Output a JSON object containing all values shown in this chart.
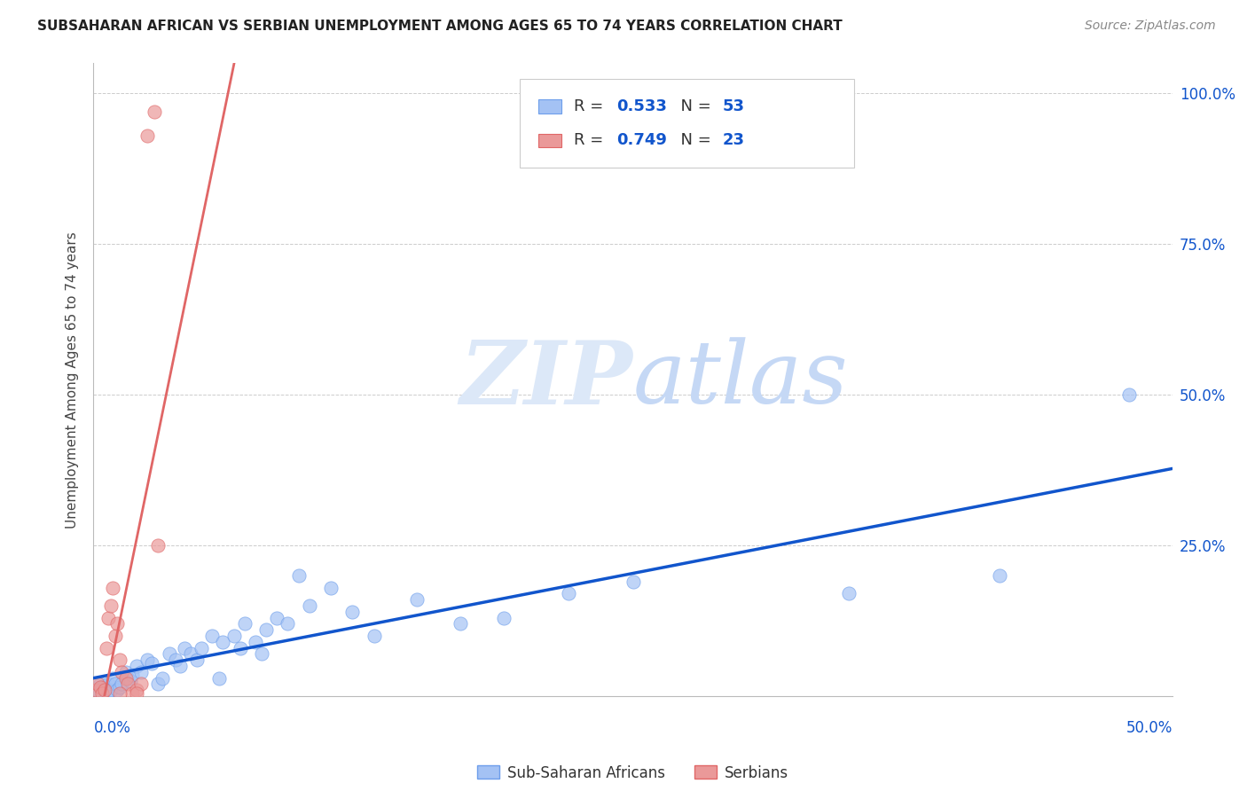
{
  "title": "SUBSAHARAN AFRICAN VS SERBIAN UNEMPLOYMENT AMONG AGES 65 TO 74 YEARS CORRELATION CHART",
  "source": "Source: ZipAtlas.com",
  "ylabel": "Unemployment Among Ages 65 to 74 years",
  "xlim": [
    0.0,
    0.5
  ],
  "ylim": [
    0.0,
    1.05
  ],
  "yticks": [
    0.0,
    0.25,
    0.5,
    0.75,
    1.0
  ],
  "yticklabels_right": [
    "",
    "25.0%",
    "50.0%",
    "75.0%",
    "100.0%"
  ],
  "blue_R": 0.533,
  "blue_N": 53,
  "pink_R": 0.749,
  "pink_N": 23,
  "blue_scatter_color": "#a4c2f4",
  "blue_edge_color": "#6d9eeb",
  "pink_scatter_color": "#ea9999",
  "pink_edge_color": "#e06666",
  "blue_line_color": "#1155cc",
  "pink_line_color": "#e06666",
  "tick_label_color": "#1155cc",
  "watermark_color": "#dce8f8",
  "legend_label_blue": "Sub-Saharan Africans",
  "legend_label_pink": "Serbians",
  "blue_x": [
    0.002,
    0.003,
    0.004,
    0.005,
    0.006,
    0.007,
    0.008,
    0.009,
    0.01,
    0.011,
    0.012,
    0.013,
    0.015,
    0.016,
    0.017,
    0.018,
    0.02,
    0.022,
    0.025,
    0.027,
    0.03,
    0.032,
    0.035,
    0.038,
    0.04,
    0.042,
    0.045,
    0.048,
    0.05,
    0.055,
    0.058,
    0.06,
    0.065,
    0.068,
    0.07,
    0.075,
    0.078,
    0.08,
    0.085,
    0.09,
    0.095,
    0.1,
    0.11,
    0.12,
    0.13,
    0.15,
    0.17,
    0.19,
    0.22,
    0.25,
    0.35,
    0.42,
    0.48
  ],
  "blue_y": [
    0.01,
    0.02,
    0.015,
    0.01,
    0.005,
    0.02,
    0.01,
    0.03,
    0.02,
    0.01,
    0.015,
    0.02,
    0.04,
    0.03,
    0.025,
    0.035,
    0.05,
    0.04,
    0.06,
    0.055,
    0.02,
    0.03,
    0.07,
    0.06,
    0.05,
    0.08,
    0.07,
    0.06,
    0.08,
    0.1,
    0.03,
    0.09,
    0.1,
    0.08,
    0.12,
    0.09,
    0.07,
    0.11,
    0.13,
    0.12,
    0.2,
    0.15,
    0.18,
    0.14,
    0.1,
    0.16,
    0.12,
    0.13,
    0.17,
    0.19,
    0.17,
    0.2,
    0.5
  ],
  "pink_x": [
    0.001,
    0.002,
    0.003,
    0.004,
    0.005,
    0.006,
    0.007,
    0.008,
    0.009,
    0.01,
    0.011,
    0.012,
    0.013,
    0.015,
    0.016,
    0.018,
    0.02,
    0.022,
    0.025,
    0.028,
    0.03,
    0.02,
    0.012
  ],
  "pink_y": [
    0.01,
    0.02,
    0.015,
    0.005,
    0.01,
    0.08,
    0.13,
    0.15,
    0.18,
    0.1,
    0.12,
    0.06,
    0.04,
    0.03,
    0.02,
    0.005,
    0.01,
    0.02,
    0.93,
    0.97,
    0.25,
    0.005,
    0.005
  ]
}
